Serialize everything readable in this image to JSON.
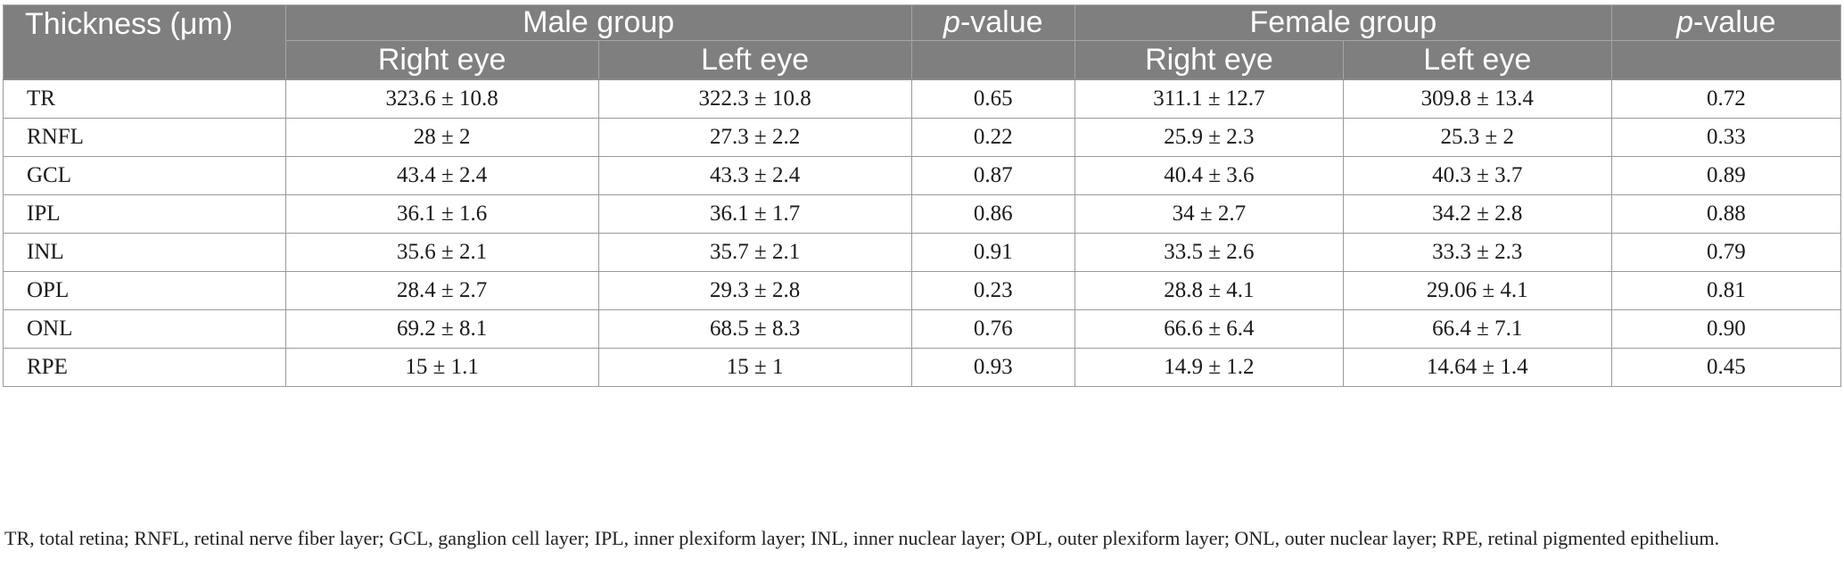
{
  "table": {
    "header": {
      "thickness": "Thickness (μm)",
      "male_group": "Male group",
      "female_group": "Female group",
      "p_italic": "p",
      "p_rest": "-value",
      "right_eye": "Right eye",
      "left_eye": "Left eye"
    },
    "rows": [
      {
        "label": "TR",
        "male_right": "323.6 ± 10.8",
        "male_left": "322.3 ± 10.8",
        "male_p": "0.65",
        "female_right": "311.1 ± 12.7",
        "female_left": "309.8 ± 13.4",
        "female_p": "0.72"
      },
      {
        "label": "RNFL",
        "male_right": "28 ± 2",
        "male_left": "27.3 ± 2.2",
        "male_p": "0.22",
        "female_right": "25.9 ± 2.3",
        "female_left": "25.3 ± 2",
        "female_p": "0.33"
      },
      {
        "label": "GCL",
        "male_right": "43.4 ± 2.4",
        "male_left": "43.3 ± 2.4",
        "male_p": "0.87",
        "female_right": "40.4 ± 3.6",
        "female_left": "40.3 ± 3.7",
        "female_p": "0.89"
      },
      {
        "label": "IPL",
        "male_right": "36.1 ± 1.6",
        "male_left": "36.1 ± 1.7",
        "male_p": "0.86",
        "female_right": "34 ± 2.7",
        "female_left": "34.2 ± 2.8",
        "female_p": "0.88"
      },
      {
        "label": "INL",
        "male_right": "35.6 ± 2.1",
        "male_left": "35.7 ± 2.1",
        "male_p": "0.91",
        "female_right": "33.5 ± 2.6",
        "female_left": "33.3 ± 2.3",
        "female_p": "0.79"
      },
      {
        "label": "OPL",
        "male_right": "28.4 ± 2.7",
        "male_left": "29.3 ± 2.8",
        "male_p": "0.23",
        "female_right": "28.8 ± 4.1",
        "female_left": "29.06 ± 4.1",
        "female_p": "0.81"
      },
      {
        "label": "ONL",
        "male_right": "69.2 ± 8.1",
        "male_left": "68.5 ± 8.3",
        "male_p": "0.76",
        "female_right": "66.6 ± 6.4",
        "female_left": "66.4 ± 7.1",
        "female_p": "0.90"
      },
      {
        "label": "RPE",
        "male_right": "15 ± 1.1",
        "male_left": "15 ± 1",
        "male_p": "0.93",
        "female_right": "14.9 ± 1.2",
        "female_left": "14.64 ± 1.4",
        "female_p": "0.45"
      }
    ]
  },
  "footnote": "TR, total retina; RNFL, retinal nerve fiber layer; GCL, ganglion cell layer; IPL, inner plexiform layer; INL, inner nuclear layer; OPL, outer plexiform layer; ONL, outer nuclear layer; RPE, retinal pigmented epithelium.",
  "colors": {
    "header_bg": "#7f7f7f",
    "header_text": "#ffffff",
    "grid": "#9a9a9a"
  }
}
